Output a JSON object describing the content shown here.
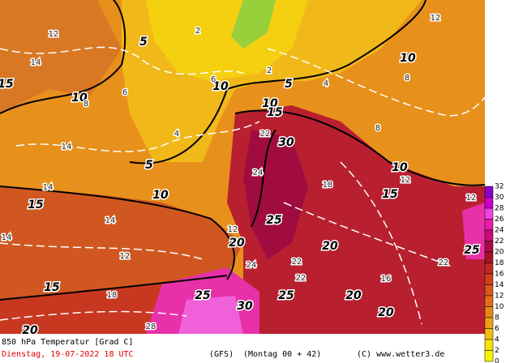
{
  "map": {
    "black_labels": [
      "5",
      "15",
      "10",
      "10",
      "5",
      "10",
      "5",
      "10",
      "15",
      "30",
      "10",
      "15",
      "10",
      "15",
      "25",
      "20",
      "20",
      "15",
      "20",
      "25",
      "25",
      "30",
      "20",
      "20",
      "25"
    ],
    "white_labels": [
      "12",
      "14",
      "12",
      "2",
      "6",
      "4",
      "8",
      "2",
      "4",
      "6",
      "8",
      "12",
      "14",
      "12",
      "14",
      "22",
      "24",
      "18",
      "12",
      "14",
      "12",
      "22",
      "22",
      "16",
      "24",
      "22",
      "18",
      "28",
      "8",
      "14"
    ]
  },
  "colorbar": {
    "labels": [
      32,
      30,
      28,
      26,
      24,
      22,
      20,
      18,
      16,
      14,
      12,
      10,
      8,
      6,
      4,
      2,
      0
    ],
    "colors": [
      "#8a00c8",
      "#c800c8",
      "#f040e0",
      "#e81ca8",
      "#c80c78",
      "#a80848",
      "#a81028",
      "#c02820",
      "#d04018",
      "#d85818",
      "#e07018",
      "#e88818",
      "#f0a018",
      "#f0c010",
      "#f8e000",
      "#f8f400"
    ]
  },
  "footer": {
    "title": "850 hPa Temperatur [Grad C]",
    "date": "Dienstag, 19-07-2022  18 UTC",
    "model": "(GFS)",
    "run": "(Montag 00 + 42)",
    "copyright": "(C) www.wetter3.de"
  }
}
